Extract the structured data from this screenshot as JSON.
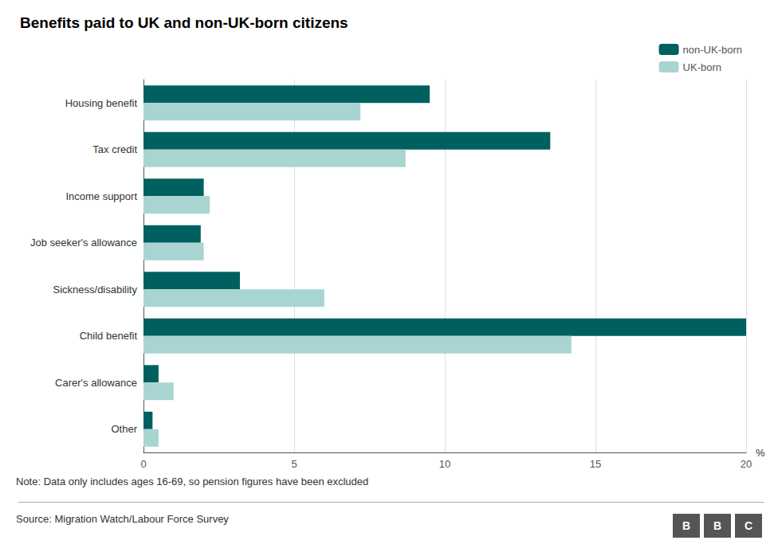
{
  "chart_data": {
    "type": "bar",
    "orientation": "horizontal",
    "title": "Benefits paid to UK and non-UK-born citizens",
    "categories": [
      "Housing benefit",
      "Tax credit",
      "Income support",
      "Job seeker's allowance",
      "Sickness/disability",
      "Child benefit",
      "Carer's allowance",
      "Other"
    ],
    "series": [
      {
        "name": "non-UK-born",
        "color": "#006060",
        "values": [
          9.5,
          13.5,
          2.0,
          1.9,
          3.2,
          20.0,
          0.5,
          0.3
        ]
      },
      {
        "name": "UK-born",
        "color": "#a8d5d1",
        "values": [
          7.2,
          8.7,
          2.2,
          2.0,
          6.0,
          14.2,
          1.0,
          0.5
        ]
      }
    ],
    "xlabel": "%",
    "xlim": [
      0,
      20
    ],
    "xticks": [
      0,
      5,
      10,
      15,
      20
    ],
    "grid": true,
    "legend": "upper right",
    "annotations": [
      "Note: Data only includes ages 16-69, so pension figures have been excluded",
      "Source: Migration Watch/Labour Force Survey"
    ],
    "logo": [
      "B",
      "B",
      "C"
    ]
  }
}
